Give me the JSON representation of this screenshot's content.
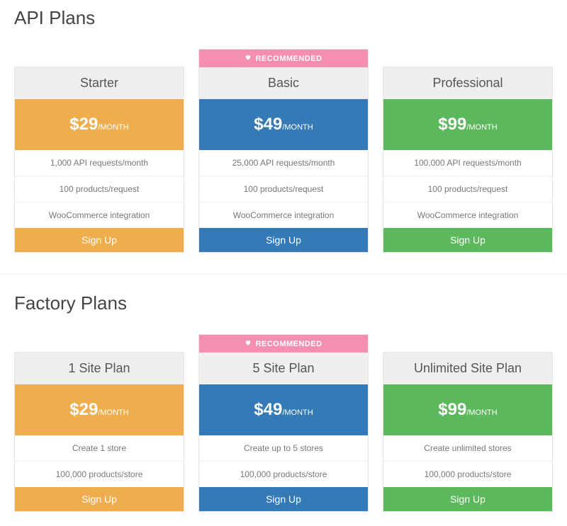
{
  "colors": {
    "orange": "#f0ad4e",
    "blue": "#337ab7",
    "green": "#5cb85c",
    "ribbon": "#f48fb1",
    "header_bg": "#efefef",
    "border": "#e6e6e6",
    "text": "#555555",
    "feature_text": "#777777"
  },
  "ribbon_label": "RECOMMENDED",
  "signup_label": "Sign Up",
  "period_label": "/MONTH",
  "sections": [
    {
      "title": "API Plans",
      "plans": [
        {
          "name": "Starter",
          "price": "$29",
          "color": "orange",
          "recommended": false,
          "features": [
            "1,000 API requests/month",
            "100 products/request",
            "WooCommerce integration"
          ]
        },
        {
          "name": "Basic",
          "price": "$49",
          "color": "blue",
          "recommended": true,
          "features": [
            "25,000 API requests/month",
            "100 products/request",
            "WooCommerce integration"
          ]
        },
        {
          "name": "Professional",
          "price": "$99",
          "color": "green",
          "recommended": false,
          "features": [
            "100,000 API requests/month",
            "100 products/request",
            "WooCommerce integration"
          ]
        }
      ]
    },
    {
      "title": "Factory Plans",
      "plans": [
        {
          "name": "1 Site Plan",
          "price": "$29",
          "color": "orange",
          "recommended": false,
          "features": [
            "Create 1 store",
            "100,000 products/store"
          ]
        },
        {
          "name": "5 Site Plan",
          "price": "$49",
          "color": "blue",
          "recommended": true,
          "features": [
            "Create up to 5 stores",
            "100,000 products/store"
          ]
        },
        {
          "name": "Unlimited Site Plan",
          "price": "$99",
          "color": "green",
          "recommended": false,
          "features": [
            "Create unlimited stores",
            "100,000 products/store"
          ]
        }
      ]
    }
  ]
}
